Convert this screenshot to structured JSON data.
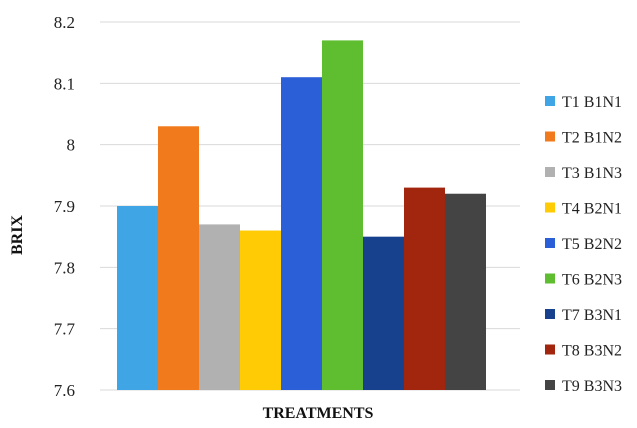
{
  "chart_data": {
    "type": "bar",
    "title": "",
    "xlabel": "TREATMENTS",
    "ylabel": "BRIX",
    "ylim": [
      7.6,
      8.2
    ],
    "yticks": [
      "7.6",
      "7.7",
      "7.8",
      "7.9",
      "8",
      "8.1",
      "8.2"
    ],
    "grid": true,
    "legend_position": "right",
    "categories": [
      "T1 B1N1",
      "T2 B1N2",
      "T3 B1N3",
      "T4 B2N1",
      "T5 B2N2",
      "T6 B2N3",
      "T7 B3N1",
      "T8 B3N2",
      "T9 B3N3"
    ],
    "values": [
      7.9,
      8.03,
      7.87,
      7.86,
      8.11,
      8.17,
      7.85,
      7.93,
      7.92
    ],
    "colors": [
      "#3fa5e4",
      "#f07a1c",
      "#b1b1b1",
      "#ffcb05",
      "#2b5fd8",
      "#5fbd30",
      "#17418c",
      "#a2260d",
      "#444444"
    ]
  }
}
